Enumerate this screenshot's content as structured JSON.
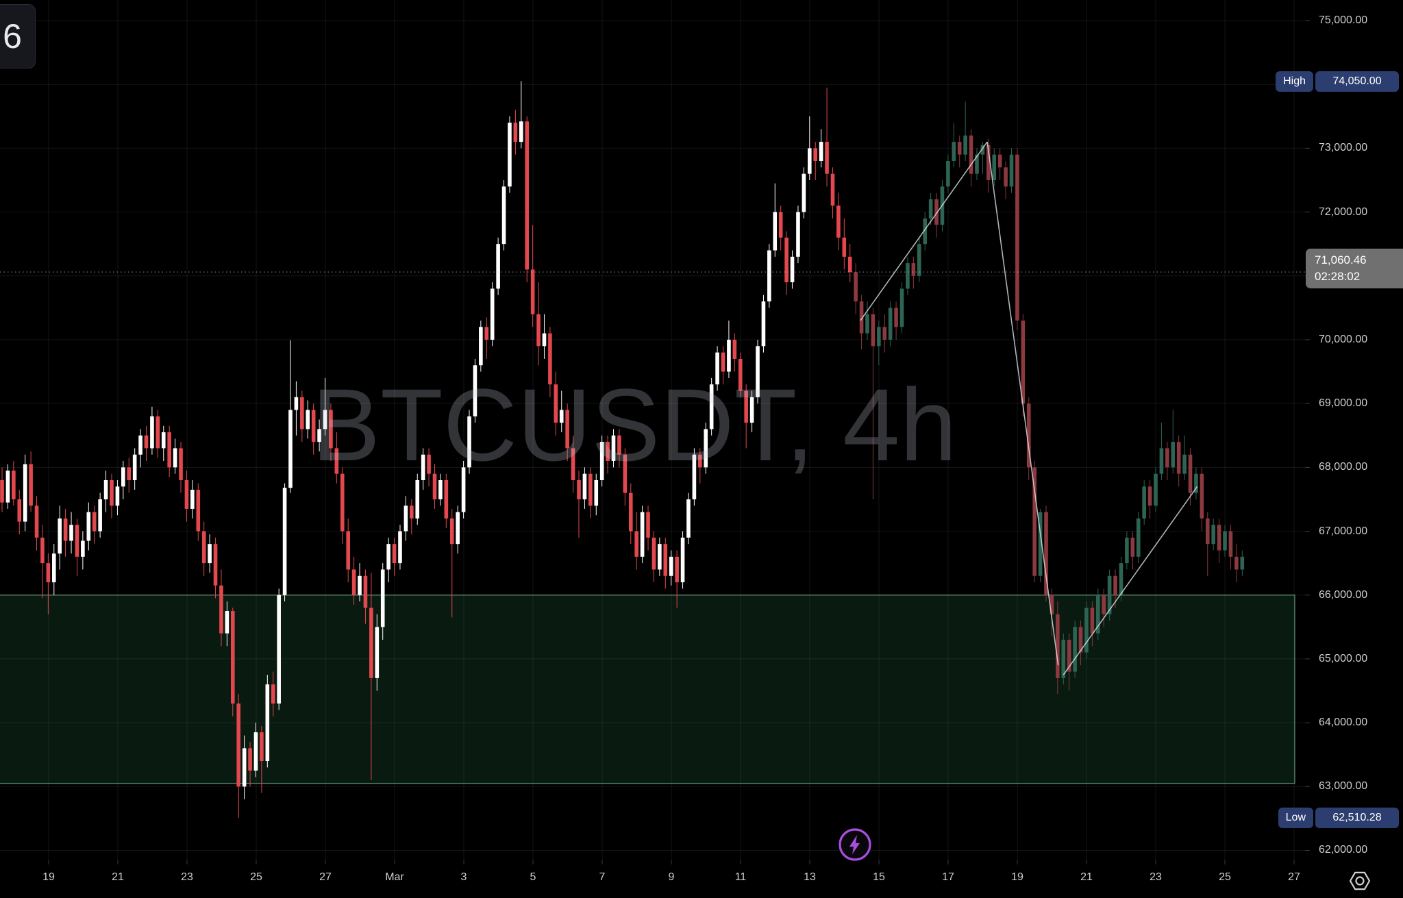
{
  "watermark": {
    "text": "BTCUSDT, 4h"
  },
  "corner_badge": {
    "text": "6"
  },
  "badges": {
    "high_label": "High",
    "high_value": "74,050.00",
    "low_label": "Low",
    "low_value": "62,510.28",
    "current_price": "71,060.46",
    "countdown": "02:28:02"
  },
  "price_axis": {
    "labels": [
      {
        "text": "75,000.00",
        "value": 75000
      },
      {
        "text": "73,000.00",
        "value": 73000
      },
      {
        "text": "72,000.00",
        "value": 72000
      },
      {
        "text": "70,000.00",
        "value": 70000
      },
      {
        "text": "69,000.00",
        "value": 69000
      },
      {
        "text": "68,000.00",
        "value": 68000
      },
      {
        "text": "67,000.00",
        "value": 67000
      },
      {
        "text": "66,000.00",
        "value": 66000
      },
      {
        "text": "65,000.00",
        "value": 65000
      },
      {
        "text": "64,000.00",
        "value": 64000
      },
      {
        "text": "63,000.00",
        "value": 63000
      },
      {
        "text": "62,000.00",
        "value": 62000
      }
    ]
  },
  "time_axis": {
    "labels": [
      {
        "text": "19",
        "day": 0
      },
      {
        "text": "21",
        "day": 2
      },
      {
        "text": "23",
        "day": 4
      },
      {
        "text": "25",
        "day": 6
      },
      {
        "text": "27",
        "day": 8
      },
      {
        "text": "Mar",
        "day": 10
      },
      {
        "text": "3",
        "day": 12
      },
      {
        "text": "5",
        "day": 14
      },
      {
        "text": "7",
        "day": 16
      },
      {
        "text": "9",
        "day": 18
      },
      {
        "text": "11",
        "day": 20
      },
      {
        "text": "13",
        "day": 22
      },
      {
        "text": "15",
        "day": 24
      },
      {
        "text": "17",
        "day": 26
      },
      {
        "text": "19",
        "day": 28
      },
      {
        "text": "21",
        "day": 30
      },
      {
        "text": "23",
        "day": 32
      },
      {
        "text": "25",
        "day": 34
      },
      {
        "text": "27",
        "day": 36
      }
    ]
  },
  "colors": {
    "up": "#ffffff",
    "down": "#e3484e",
    "dim_up": "#2e6453",
    "dim_down": "#8c393f",
    "grid": "rgba(255,255,255,0.08)",
    "tick": "#3a3d42",
    "zone_fill": "rgba(58,160,98,0.16)",
    "zone_border": "rgba(150,220,185,0.55)",
    "trendline": "rgba(235,240,245,0.75)",
    "price_line": "rgba(210,210,210,0.55)",
    "accent_purple": "#a84fe0",
    "gear_gray": "#cfd2d6"
  },
  "chart_data": {
    "type": "candlestick",
    "symbol": "BTCUSDT",
    "interval": "4h",
    "title": "BTCUSDT, 4h",
    "high": 74050.0,
    "low": 62510.28,
    "last_price": 71060.46,
    "countdown": "02:28:02",
    "visible_price_range": [
      61780,
      75322
    ],
    "grid_price_step": 1000,
    "dim_from_index": 148,
    "zone": {
      "price_top": 66000,
      "price_bottom": 63050
    },
    "trendlines": [
      {
        "x1_index": 148.8,
        "price1": 70300,
        "x2_index": 170.8,
        "price2": 73100
      },
      {
        "x1_index": 170.8,
        "price1": 73100,
        "x2_index": 183.1,
        "price2": 64900
      },
      {
        "x1_index": 184.0,
        "price1": 64750,
        "x2_index": 207.2,
        "price2": 67700
      }
    ],
    "candles": [
      [
        67800,
        68000,
        67300,
        67450
      ],
      [
        67450,
        68050,
        67350,
        67950
      ],
      [
        67950,
        68100,
        67400,
        67500
      ],
      [
        67500,
        67650,
        66950,
        67150
      ],
      [
        67150,
        68200,
        67000,
        68050
      ],
      [
        68050,
        68250,
        67300,
        67400
      ],
      [
        67400,
        67550,
        66700,
        66900
      ],
      [
        66900,
        67100,
        65950,
        66500
      ],
      [
        66500,
        66650,
        65700,
        66200
      ],
      [
        66200,
        66800,
        66000,
        66650
      ],
      [
        66650,
        67400,
        66400,
        67200
      ],
      [
        67200,
        67350,
        66600,
        66850
      ],
      [
        66850,
        67300,
        66650,
        67100
      ],
      [
        67100,
        67200,
        66300,
        66600
      ],
      [
        66600,
        67000,
        66400,
        66850
      ],
      [
        66850,
        67450,
        66700,
        67300
      ],
      [
        67300,
        67400,
        66800,
        67000
      ],
      [
        67000,
        67600,
        66900,
        67500
      ],
      [
        67500,
        67950,
        67300,
        67800
      ],
      [
        67800,
        67900,
        67200,
        67400
      ],
      [
        67400,
        67800,
        67250,
        67700
      ],
      [
        67700,
        68100,
        67500,
        68000
      ],
      [
        68000,
        68150,
        67600,
        67800
      ],
      [
        67800,
        68300,
        67650,
        68200
      ],
      [
        68200,
        68600,
        68000,
        68500
      ],
      [
        68500,
        68650,
        68100,
        68300
      ],
      [
        68300,
        68950,
        68200,
        68800
      ],
      [
        68800,
        68900,
        68150,
        68300
      ],
      [
        68300,
        68650,
        68100,
        68550
      ],
      [
        68550,
        68650,
        67850,
        68000
      ],
      [
        68000,
        68450,
        67900,
        68300
      ],
      [
        68300,
        68400,
        67600,
        67800
      ],
      [
        67800,
        67950,
        67150,
        67350
      ],
      [
        67350,
        67800,
        67200,
        67650
      ],
      [
        67650,
        67750,
        66850,
        67000
      ],
      [
        67000,
        67150,
        66300,
        66500
      ],
      [
        66500,
        66950,
        66350,
        66800
      ],
      [
        66800,
        66900,
        65950,
        66150
      ],
      [
        66150,
        66400,
        65200,
        65400
      ],
      [
        65400,
        65900,
        65200,
        65750
      ],
      [
        65750,
        65800,
        64100,
        64300
      ],
      [
        64300,
        64450,
        62510,
        63000
      ],
      [
        63000,
        63800,
        62800,
        63600
      ],
      [
        63600,
        63700,
        63000,
        63250
      ],
      [
        63250,
        64000,
        63150,
        63850
      ],
      [
        63850,
        63950,
        62900,
        63400
      ],
      [
        63400,
        64750,
        63300,
        64600
      ],
      [
        64600,
        64800,
        64100,
        64300
      ],
      [
        64300,
        66100,
        64200,
        66000
      ],
      [
        66000,
        67750,
        65900,
        67680
      ],
      [
        67680,
        69990,
        67600,
        68900
      ],
      [
        68900,
        69350,
        68500,
        69100
      ],
      [
        69100,
        69200,
        68400,
        68600
      ],
      [
        68600,
        69050,
        68450,
        68900
      ],
      [
        68900,
        69000,
        68200,
        68400
      ],
      [
        68400,
        68750,
        68250,
        68600
      ],
      [
        68600,
        69400,
        68500,
        68900
      ],
      [
        68900,
        69000,
        68100,
        68300
      ],
      [
        68300,
        68550,
        67750,
        67900
      ],
      [
        67900,
        68000,
        66800,
        67000
      ],
      [
        67000,
        67200,
        66200,
        66400
      ],
      [
        66400,
        66600,
        65850,
        66000
      ],
      [
        66000,
        66500,
        65900,
        66300
      ],
      [
        66300,
        66400,
        65550,
        65800
      ],
      [
        65800,
        66350,
        63100,
        64700
      ],
      [
        64700,
        65700,
        64500,
        65500
      ],
      [
        65500,
        66500,
        65300,
        66400
      ],
      [
        66400,
        66900,
        66200,
        66800
      ],
      [
        66800,
        66900,
        66300,
        66500
      ],
      [
        66500,
        67100,
        66400,
        67000
      ],
      [
        67000,
        67550,
        66850,
        67400
      ],
      [
        67400,
        67500,
        66950,
        67200
      ],
      [
        67200,
        67900,
        67100,
        67800
      ],
      [
        67800,
        68300,
        67650,
        68200
      ],
      [
        68200,
        68300,
        67700,
        67900
      ],
      [
        67900,
        68050,
        67350,
        67500
      ],
      [
        67500,
        67900,
        67400,
        67800
      ],
      [
        67800,
        67900,
        67050,
        67200
      ],
      [
        67200,
        67350,
        65650,
        66800
      ],
      [
        66800,
        67400,
        66650,
        67300
      ],
      [
        67300,
        68100,
        67200,
        68000
      ],
      [
        68000,
        68900,
        67900,
        68800
      ],
      [
        68800,
        69700,
        68700,
        69600
      ],
      [
        69600,
        70300,
        69500,
        70200
      ],
      [
        70200,
        70350,
        69700,
        70000
      ],
      [
        70000,
        70900,
        69900,
        70800
      ],
      [
        70800,
        71600,
        70700,
        71500
      ],
      [
        71500,
        72500,
        71400,
        72400
      ],
      [
        72400,
        73500,
        72300,
        73400
      ],
      [
        73400,
        73600,
        72900,
        73100
      ],
      [
        73100,
        74050,
        73000,
        73420
      ],
      [
        73420,
        73500,
        70900,
        71100
      ],
      [
        71100,
        71800,
        70200,
        70400
      ],
      [
        70400,
        70900,
        69600,
        69900
      ],
      [
        69900,
        70400,
        69700,
        70100
      ],
      [
        70100,
        70200,
        69100,
        69300
      ],
      [
        69300,
        69500,
        68500,
        68700
      ],
      [
        68700,
        69200,
        68550,
        68900
      ],
      [
        68900,
        69000,
        68100,
        68300
      ],
      [
        68300,
        68500,
        67600,
        67800
      ],
      [
        67800,
        67950,
        66900,
        67500
      ],
      [
        67500,
        68000,
        67350,
        67900
      ],
      [
        67900,
        68000,
        67200,
        67400
      ],
      [
        67400,
        67900,
        67250,
        67800
      ],
      [
        67800,
        68500,
        67700,
        68400
      ],
      [
        68400,
        68500,
        67900,
        68100
      ],
      [
        68100,
        68600,
        68000,
        68500
      ],
      [
        68500,
        68600,
        68000,
        68200
      ],
      [
        68200,
        68300,
        67400,
        67600
      ],
      [
        67600,
        67750,
        66800,
        67000
      ],
      [
        67000,
        67300,
        66400,
        66600
      ],
      [
        66600,
        67400,
        66500,
        67300
      ],
      [
        67300,
        67400,
        66700,
        66900
      ],
      [
        66900,
        67000,
        66200,
        66400
      ],
      [
        66400,
        66900,
        66300,
        66800
      ],
      [
        66800,
        66900,
        66100,
        66300
      ],
      [
        66300,
        66700,
        66150,
        66600
      ],
      [
        66600,
        66700,
        65800,
        66200
      ],
      [
        66200,
        67000,
        66100,
        66900
      ],
      [
        66900,
        67600,
        66800,
        67500
      ],
      [
        67500,
        68300,
        67400,
        68200
      ],
      [
        68200,
        68300,
        67750,
        68000
      ],
      [
        68000,
        68700,
        67900,
        68600
      ],
      [
        68600,
        69400,
        68500,
        69300
      ],
      [
        69300,
        69900,
        69200,
        69800
      ],
      [
        69800,
        69900,
        69300,
        69500
      ],
      [
        69500,
        70300,
        69400,
        70000
      ],
      [
        70000,
        70100,
        69500,
        69700
      ],
      [
        69700,
        69800,
        69100,
        69200
      ],
      [
        69200,
        69300,
        68300,
        68700
      ],
      [
        68700,
        69200,
        68550,
        69100
      ],
      [
        69100,
        70000,
        69000,
        69900
      ],
      [
        69900,
        70700,
        69800,
        70600
      ],
      [
        70600,
        71500,
        70500,
        71400
      ],
      [
        71400,
        72450,
        71300,
        72000
      ],
      [
        72000,
        72100,
        71400,
        71600
      ],
      [
        71600,
        71700,
        70700,
        70900
      ],
      [
        70900,
        71400,
        70800,
        71300
      ],
      [
        71300,
        72100,
        71200,
        72000
      ],
      [
        72000,
        72700,
        71900,
        72600
      ],
      [
        72600,
        73500,
        72500,
        73000
      ],
      [
        73000,
        73100,
        72500,
        72800
      ],
      [
        72800,
        73300,
        72700,
        73100
      ],
      [
        73100,
        73950,
        72400,
        72600
      ],
      [
        72600,
        72700,
        71900,
        72100
      ],
      [
        72100,
        72300,
        71400,
        71600
      ],
      [
        71600,
        71900,
        71100,
        71300
      ],
      [
        71300,
        71500,
        70900,
        71060
      ],
      [
        71060,
        71200,
        70400,
        70600
      ],
      [
        70600,
        70700,
        69850,
        70100
      ],
      [
        70100,
        70600,
        70000,
        70400
      ],
      [
        70400,
        70500,
        67500,
        69900
      ],
      [
        69900,
        70300,
        69600,
        70200
      ],
      [
        70200,
        70400,
        69800,
        70000
      ],
      [
        70000,
        70600,
        69900,
        70500
      ],
      [
        70500,
        70600,
        70000,
        70200
      ],
      [
        70200,
        70900,
        70100,
        70800
      ],
      [
        70800,
        71300,
        70700,
        71200
      ],
      [
        71200,
        71300,
        70800,
        71000
      ],
      [
        71000,
        71600,
        70900,
        71500
      ],
      [
        71500,
        72000,
        71400,
        71900
      ],
      [
        71900,
        72300,
        71800,
        72200
      ],
      [
        72200,
        72300,
        71600,
        71800
      ],
      [
        71800,
        72500,
        71700,
        72400
      ],
      [
        72400,
        72900,
        72300,
        72800
      ],
      [
        72800,
        73400,
        72700,
        73100
      ],
      [
        73100,
        73200,
        72700,
        72900
      ],
      [
        72900,
        73730,
        72800,
        73200
      ],
      [
        73200,
        73300,
        72400,
        72600
      ],
      [
        72600,
        73000,
        72500,
        72900
      ],
      [
        72900,
        73100,
        72600,
        73050
      ],
      [
        73050,
        73150,
        72300,
        72500
      ],
      [
        72500,
        73000,
        72400,
        72900
      ],
      [
        72900,
        73000,
        72500,
        72700
      ],
      [
        72700,
        72800,
        72200,
        72400
      ],
      [
        72400,
        73000,
        72300,
        72900
      ],
      [
        72900,
        73000,
        70150,
        70300
      ],
      [
        70300,
        70400,
        68800,
        69000
      ],
      [
        69000,
        69100,
        67800,
        68000
      ],
      [
        68000,
        68100,
        66200,
        66300
      ],
      [
        66300,
        67350,
        66200,
        67300
      ],
      [
        67300,
        67400,
        65900,
        66000
      ],
      [
        66000,
        66100,
        65350,
        65700
      ],
      [
        65700,
        65900,
        64450,
        64700
      ],
      [
        64700,
        65400,
        64600,
        65300
      ],
      [
        65300,
        65400,
        64500,
        64800
      ],
      [
        64800,
        65600,
        64700,
        65500
      ],
      [
        65500,
        65600,
        64900,
        65100
      ],
      [
        65100,
        65900,
        65000,
        65800
      ],
      [
        65800,
        65900,
        65200,
        65400
      ],
      [
        65400,
        66100,
        65300,
        66000
      ],
      [
        66000,
        66100,
        65500,
        65700
      ],
      [
        65700,
        66400,
        65600,
        66300
      ],
      [
        66300,
        66400,
        65800,
        66000
      ],
      [
        66000,
        66600,
        65900,
        66500
      ],
      [
        66500,
        67000,
        66400,
        66900
      ],
      [
        66900,
        67000,
        66400,
        66600
      ],
      [
        66600,
        67300,
        66500,
        67200
      ],
      [
        67200,
        67800,
        67100,
        67700
      ],
      [
        67700,
        67800,
        67200,
        67400
      ],
      [
        67400,
        68000,
        67300,
        67900
      ],
      [
        67900,
        68700,
        67800,
        68300
      ],
      [
        68300,
        68400,
        67800,
        68000
      ],
      [
        68000,
        68900,
        67900,
        68400
      ],
      [
        68400,
        68500,
        67700,
        67900
      ],
      [
        67900,
        68500,
        67800,
        68200
      ],
      [
        68200,
        68300,
        67400,
        67600
      ],
      [
        67600,
        68000,
        67500,
        67900
      ],
      [
        67900,
        68000,
        67000,
        67200
      ],
      [
        67200,
        67300,
        66300,
        66800
      ],
      [
        66800,
        67200,
        66700,
        67100
      ],
      [
        67100,
        67200,
        66500,
        66700
      ],
      [
        66700,
        67100,
        66600,
        67000
      ],
      [
        67000,
        67100,
        66400,
        66600
      ],
      [
        66600,
        66800,
        66200,
        66400
      ],
      [
        66400,
        66700,
        66300,
        66600
      ]
    ]
  }
}
